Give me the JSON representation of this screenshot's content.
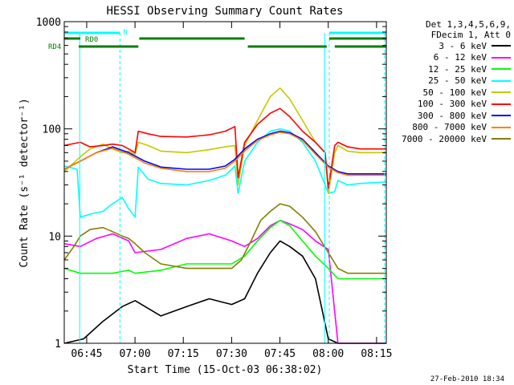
{
  "chart_data": {
    "type": "line",
    "title": "HESSI Observing Summary Count Rates",
    "xlabel": "Start Time (15-Oct-03 06:38:02)",
    "ylabel": "Count Rate (s⁻¹ detector⁻¹)",
    "x_unit": "minutes since 06:38:02",
    "xlim": [
      0,
      100
    ],
    "ylim": [
      1,
      1000
    ],
    "yscale": "log",
    "grid": false,
    "x_ticks": [
      {
        "value": 6.97,
        "label": "06:45"
      },
      {
        "value": 21.97,
        "label": "07:00"
      },
      {
        "value": 36.97,
        "label": "07:15"
      },
      {
        "value": 51.97,
        "label": "07:30"
      },
      {
        "value": 66.97,
        "label": "07:45"
      },
      {
        "value": 81.97,
        "label": "08:00"
      },
      {
        "value": 96.97,
        "label": "08:15"
      }
    ],
    "y_ticks": [
      {
        "value": 1,
        "label": "1"
      },
      {
        "value": 10,
        "label": "10"
      },
      {
        "value": 100,
        "label": "100"
      },
      {
        "value": 1000,
        "label": "1000"
      }
    ],
    "legend_header": [
      "Det 1,3,4,5,6,9,",
      "FDecim 1, Att 0"
    ],
    "legend_position": "right",
    "series": [
      {
        "name": "3 - 6 keV",
        "color": "#000000",
        "x": [
          0,
          6,
          12,
          18,
          22,
          30,
          38,
          45,
          52,
          56,
          60,
          64,
          67,
          70,
          74,
          78,
          82,
          85,
          88,
          92,
          100
        ],
        "values": [
          1,
          1.1,
          1.6,
          2.2,
          2.5,
          1.8,
          2.2,
          2.6,
          2.3,
          2.6,
          4.5,
          7,
          9,
          8,
          6.5,
          4,
          1.1,
          1,
          1,
          1,
          1
        ]
      },
      {
        "name": "6 - 12 keV",
        "color": "#ff00ff",
        "x": [
          0,
          5,
          10,
          15,
          20,
          22,
          30,
          38,
          45,
          52,
          56,
          60,
          64,
          67,
          70,
          74,
          78,
          82,
          85,
          88,
          92,
          100
        ],
        "values": [
          8.5,
          8,
          9.5,
          10.5,
          9,
          7,
          7.5,
          9.5,
          10.5,
          9,
          8,
          9.5,
          12.5,
          14,
          13,
          11.5,
          9,
          7.5,
          1,
          1,
          1,
          1
        ]
      },
      {
        "name": "12 - 25 keV",
        "color": "#00ff00",
        "x": [
          0,
          5,
          10,
          15,
          20,
          22,
          30,
          38,
          45,
          52,
          56,
          60,
          64,
          67,
          70,
          74,
          78,
          82,
          85,
          88,
          92,
          100
        ],
        "values": [
          5,
          4.5,
          4.5,
          4.5,
          4.8,
          4.5,
          4.8,
          5.5,
          5.5,
          5.5,
          6.5,
          9,
          12,
          14,
          12.5,
          9,
          6.5,
          5,
          4,
          4,
          4,
          4
        ]
      },
      {
        "name": "25 - 50 keV",
        "color": "#00ffff",
        "x": [
          0,
          4,
          5,
          8,
          12,
          15,
          18,
          20,
          22,
          23,
          26,
          30,
          38,
          45,
          50,
          53,
          54,
          56,
          60,
          64,
          67,
          70,
          74,
          78,
          81,
          82,
          84,
          85,
          88,
          92,
          100
        ],
        "values": [
          45,
          42,
          15,
          16,
          17,
          20,
          23,
          18,
          15,
          44,
          34,
          31,
          30,
          33,
          37,
          45,
          25,
          50,
          75,
          95,
          100,
          95,
          75,
          50,
          30,
          25,
          26,
          33,
          30,
          31,
          32
        ]
      },
      {
        "name": "50 - 100 keV",
        "color": "#c8c800",
        "x": [
          0,
          5,
          8,
          12,
          15,
          18,
          20,
          22,
          23,
          26,
          30,
          38,
          45,
          50,
          53,
          54,
          56,
          60,
          64,
          67,
          70,
          74,
          78,
          81,
          82,
          84,
          85,
          88,
          92,
          100
        ],
        "values": [
          40,
          55,
          65,
          72,
          65,
          60,
          62,
          58,
          75,
          70,
          62,
          60,
          64,
          68,
          70,
          30,
          70,
          120,
          200,
          240,
          190,
          120,
          75,
          60,
          25,
          60,
          70,
          62,
          60,
          60
        ]
      },
      {
        "name": "100 - 300 keV",
        "color": "#ff0000",
        "x": [
          0,
          5,
          8,
          12,
          15,
          18,
          20,
          22,
          23,
          26,
          30,
          38,
          45,
          50,
          53,
          54,
          56,
          60,
          64,
          67,
          70,
          74,
          78,
          81,
          82,
          84,
          85,
          88,
          92,
          100
        ],
        "values": [
          70,
          75,
          68,
          70,
          72,
          70,
          65,
          60,
          95,
          90,
          85,
          84,
          88,
          95,
          105,
          35,
          75,
          110,
          140,
          155,
          130,
          95,
          75,
          60,
          28,
          70,
          75,
          68,
          65,
          65
        ]
      },
      {
        "name": "300 - 800 keV",
        "color": "#0000ff",
        "x": [
          0,
          5,
          10,
          15,
          20,
          25,
          30,
          38,
          45,
          50,
          53,
          56,
          60,
          64,
          67,
          70,
          74,
          78,
          82,
          85,
          88,
          92,
          100
        ],
        "values": [
          42,
          50,
          60,
          68,
          60,
          50,
          44,
          42,
          42,
          45,
          52,
          65,
          80,
          90,
          95,
          92,
          80,
          60,
          45,
          40,
          38,
          38,
          38
        ]
      },
      {
        "name": "800 - 7000 keV",
        "color": "#ff8000",
        "x": [
          0,
          5,
          10,
          15,
          20,
          25,
          30,
          38,
          45,
          50,
          53,
          56,
          60,
          64,
          67,
          70,
          74,
          78,
          82,
          85,
          88,
          92,
          100
        ],
        "values": [
          42,
          50,
          60,
          66,
          58,
          48,
          43,
          40,
          40,
          43,
          50,
          62,
          78,
          88,
          93,
          90,
          78,
          58,
          44,
          39,
          37,
          37,
          37
        ]
      },
      {
        "name": "7000 - 20000 keV",
        "color": "#808000",
        "x": [
          0,
          3,
          5,
          8,
          12,
          15,
          18,
          20,
          22,
          25,
          30,
          38,
          45,
          52,
          55,
          58,
          61,
          64,
          67,
          70,
          74,
          78,
          82,
          85,
          88,
          92,
          100
        ],
        "values": [
          6,
          8,
          10,
          11.5,
          12,
          11,
          10,
          9.5,
          8.5,
          7,
          5.5,
          5,
          5,
          5,
          6,
          9,
          14,
          17,
          20,
          19,
          15,
          11,
          7,
          5,
          4.5,
          4.5,
          4.5
        ]
      }
    ],
    "annotations": [
      {
        "text": "N",
        "kind": "bar",
        "color": "#00ffff",
        "segments": [
          [
            0,
            17.3
          ],
          [
            82.3,
            100
          ]
        ]
      },
      {
        "text": "RD0",
        "kind": "bar",
        "color": "#008000",
        "segments": [
          [
            0,
            5
          ],
          [
            23.3,
            56
          ],
          [
            82.3,
            100
          ]
        ]
      },
      {
        "text": "RD4",
        "kind": "bar",
        "color": "#008000",
        "segments": [
          [
            4.5,
            23
          ],
          [
            57,
            81.5
          ],
          [
            84,
            100
          ]
        ]
      }
    ],
    "vertical_lines": [
      {
        "x": 17.3,
        "style": "dashed",
        "color": "#00ffff"
      },
      {
        "x": 82.3,
        "style": "dashed",
        "color": "#00ffff"
      },
      {
        "x": 99.5,
        "style": "dashed",
        "color": "#00ffff"
      },
      {
        "x": 4.8,
        "style": "solid",
        "color": "#00ffff"
      },
      {
        "x": 80.9,
        "style": "solid",
        "color": "#00ffff"
      }
    ]
  },
  "footer": {
    "datestamp": "27-Feb-2010 18:34"
  },
  "legend_colors": {
    "swatch_default": "#000000"
  }
}
